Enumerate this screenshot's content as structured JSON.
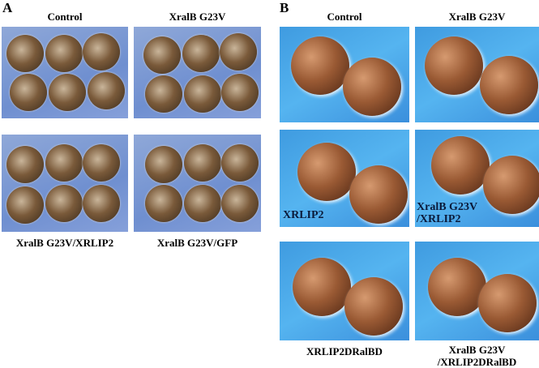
{
  "panel_a": {
    "letter": "A",
    "col_labels": [
      "Control",
      "XralB G23V"
    ],
    "bottom_labels": [
      "XralB G23V/XRLIP2",
      "XralB G23V/GFP"
    ]
  },
  "panel_b": {
    "letter": "B",
    "col_labels": [
      "Control",
      "XralB G23V"
    ],
    "inset_labels": {
      "xrlip2": "XRLIP2",
      "combo_line1": "XralB G23V",
      "combo_line2": "/XRLIP2"
    },
    "bottom_labels": {
      "left": "XRLIP2DRalBD",
      "right_line1": "XralB G23V",
      "right_line2": "/XRLIP2DRalBD"
    }
  },
  "colors": {
    "panel_a_bg": "#7f9ad6",
    "panel_b_bg": "#4aa8ec",
    "embryo": "#7a4a2a"
  }
}
